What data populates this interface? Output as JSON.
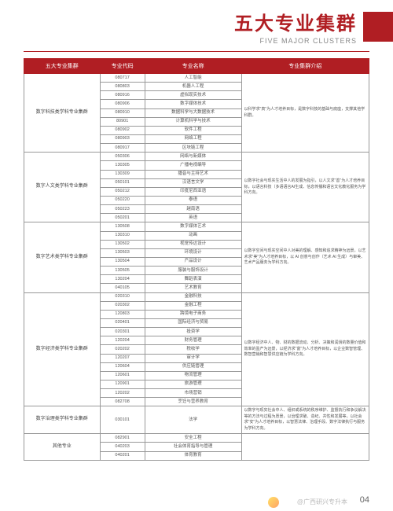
{
  "header": {
    "title_cn": "五大专业集群",
    "title_en": "FIVE MAJOR CLUSTERS",
    "accent_color": "#b01e23"
  },
  "table": {
    "headers": [
      "五大专业集群",
      "专业代码",
      "专业名称",
      "专业集群介绍"
    ],
    "clusters": [
      {
        "name": "数字科技类学科专业集群",
        "intro": "以科学求\"真\"为人才培养目标，是数字科技的基础与底座，支撑其他学科群。",
        "majors": [
          {
            "code": "080717",
            "name": "人工智能"
          },
          {
            "code": "080803",
            "name": "机器人工程"
          },
          {
            "code": "080916",
            "name": "虚拟现实技术"
          },
          {
            "code": "080906",
            "name": "数字媒体技术"
          },
          {
            "code": "080910",
            "name": "数据科学与大数据技术"
          },
          {
            "code": "80901",
            "name": "计算机科学与技术"
          },
          {
            "code": "080902",
            "name": "软件工程"
          },
          {
            "code": "080903",
            "name": "网络工程"
          },
          {
            "code": "080917",
            "name": "区块链工程"
          }
        ]
      },
      {
        "name": "数字人文类学科专业集群",
        "intro": "以数字社会与现实生活中人的发展为指引，以人文求\"善\"为人才培养目标，以语言科技（多语语言AI生成、信息传播和语言文化教化服务为学科方向。",
        "majors": [
          {
            "code": "050306",
            "name": "网络与新媒体"
          },
          {
            "code": "130305",
            "name": "广播电视编导"
          },
          {
            "code": "130309",
            "name": "播音与主持艺术"
          },
          {
            "code": "050101",
            "name": "汉语言文学"
          },
          {
            "code": "050212",
            "name": "印度尼西亚语"
          },
          {
            "code": "050220",
            "name": "泰语"
          },
          {
            "code": "050223",
            "name": "越南语"
          },
          {
            "code": "050201",
            "name": "英语"
          }
        ]
      },
      {
        "name": "数字艺术类学科专业集群",
        "intro": "以数字空间与现实空间中人对美的理解、感知和追求精神为远景，以艺术求\"美\"为人才培养目标，以 AI 创意与创作（艺术 AI 生成）与审美、艺术产品服务为学科方向。",
        "majors": [
          {
            "code": "130508",
            "name": "数字媒体艺术"
          },
          {
            "code": "130310",
            "name": "动画"
          },
          {
            "code": "130502",
            "name": "视觉传达设计"
          },
          {
            "code": "130503",
            "name": "环境设计"
          },
          {
            "code": "130504",
            "name": "产品设计"
          },
          {
            "code": "130505",
            "name": "服装与服饰设计"
          },
          {
            "code": "130204",
            "name": "舞蹈表演"
          },
          {
            "code": "040105",
            "name": "艺术教育"
          }
        ]
      },
      {
        "name": "数字经济类学科专业集群",
        "intro": "以数字经济中人、物、财的数据流动、分析、决策和润滑的数量价值和效率的盈产为远景，以经济求\"富\"为人才培养目标，以企业数智管理、数智营销和智慧供应链为学科方向。",
        "majors": [
          {
            "code": "020310",
            "name": "金融科技"
          },
          {
            "code": "020302",
            "name": "金融工程"
          },
          {
            "code": "120803",
            "name": "跨境电子商务"
          },
          {
            "code": "020401",
            "name": "国际经济与贸易"
          },
          {
            "code": "020301",
            "name": "投资学"
          },
          {
            "code": "120204",
            "name": "财务管理"
          },
          {
            "code": "020202",
            "name": "税收学"
          },
          {
            "code": "120207",
            "name": "审计学"
          },
          {
            "code": "120604",
            "name": "供应链管理"
          },
          {
            "code": "120601",
            "name": "物流管理"
          },
          {
            "code": "120901",
            "name": "旅游管理"
          },
          {
            "code": "120202",
            "name": "市场营销"
          },
          {
            "code": "082708",
            "name": "烹饪与营养教育"
          }
        ]
      },
      {
        "name": "数字治理类学科专业集群",
        "intro": "以数字与现实社会中人、组织或系统的秩序维护、监督执行和争议解决等的方法与过程为愿景，以治理求破、造纪、共性和发展等，以社会求\"安\"为人才培养目标，以智慧法律、治理手段、数字法律执行与服务为学科方向。",
        "majors": [
          {
            "code": "030101",
            "name": "法学"
          }
        ]
      },
      {
        "name": "其他专业",
        "intro": "",
        "majors": [
          {
            "code": "082901",
            "name": "安全工程"
          },
          {
            "code": "040203",
            "name": "社会体育指导与管理"
          },
          {
            "code": "040201",
            "name": "体育教育"
          }
        ]
      }
    ]
  },
  "page_number": "04",
  "watermark": "@广西研兴专升本"
}
